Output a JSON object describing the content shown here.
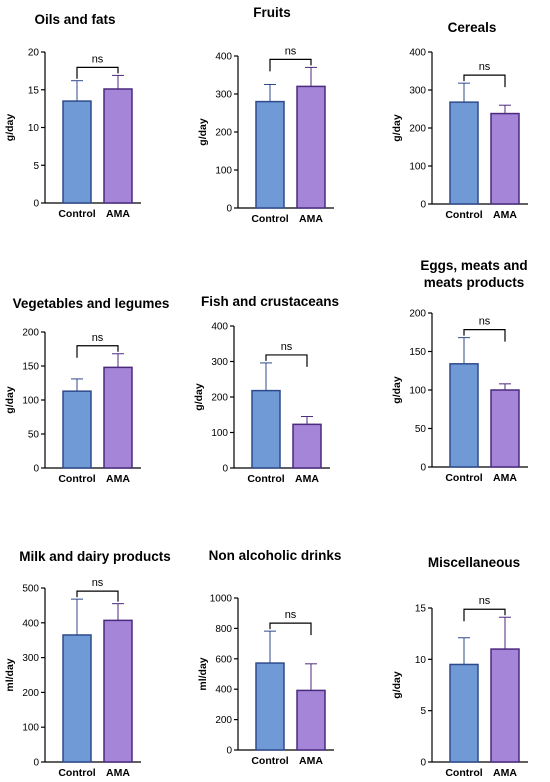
{
  "chart_data": [
    {
      "type": "bar",
      "title": "Oils and fats",
      "ylabel": "g/day",
      "categories": [
        "Control",
        "AMA"
      ],
      "values": [
        13.5,
        15.1
      ],
      "errors": [
        2.7,
        1.8
      ],
      "ylim": [
        0,
        20
      ],
      "yticks": [
        0,
        5,
        10,
        15,
        20
      ],
      "significance": "ns",
      "colors": {
        "fill": [
          "#6f9ad6",
          "#a485d8"
        ],
        "stroke": [
          "#2f4a8c",
          "#4b2a7e"
        ]
      }
    },
    {
      "type": "bar",
      "title": "Fruits",
      "ylabel": "g/day",
      "categories": [
        "Control",
        "AMA"
      ],
      "values": [
        280,
        320
      ],
      "errors": [
        45,
        50
      ],
      "ylim": [
        0,
        400
      ],
      "yticks": [
        0,
        100,
        200,
        300,
        400
      ],
      "significance": "ns",
      "colors": {
        "fill": [
          "#6f9ad6",
          "#a485d8"
        ],
        "stroke": [
          "#2f4a8c",
          "#4b2a7e"
        ]
      }
    },
    {
      "type": "bar",
      "title": "Cereals",
      "ylabel": "g/day",
      "categories": [
        "Control",
        "AMA"
      ],
      "values": [
        268,
        238
      ],
      "errors": [
        50,
        22
      ],
      "ylim": [
        0,
        400
      ],
      "yticks": [
        0,
        100,
        200,
        300,
        400
      ],
      "significance": "ns",
      "colors": {
        "fill": [
          "#6f9ad6",
          "#a485d8"
        ],
        "stroke": [
          "#2f4a8c",
          "#4b2a7e"
        ]
      }
    },
    {
      "type": "bar",
      "title": "Vegetables and legumes",
      "ylabel": "g/day",
      "categories": [
        "Control",
        "AMA"
      ],
      "values": [
        113,
        148
      ],
      "errors": [
        18,
        20
      ],
      "ylim": [
        0,
        200
      ],
      "yticks": [
        0,
        50,
        100,
        150,
        200
      ],
      "significance": "ns",
      "colors": {
        "fill": [
          "#6f9ad6",
          "#a485d8"
        ],
        "stroke": [
          "#2f4a8c",
          "#4b2a7e"
        ]
      }
    },
    {
      "type": "bar",
      "title": "Fish and crustaceans",
      "ylabel": "g/day",
      "categories": [
        "Control",
        "AMA"
      ],
      "values": [
        218,
        123
      ],
      "errors": [
        78,
        22
      ],
      "ylim": [
        0,
        400
      ],
      "yticks": [
        0,
        100,
        200,
        300,
        400
      ],
      "significance": "ns",
      "colors": {
        "fill": [
          "#6f9ad6",
          "#a485d8"
        ],
        "stroke": [
          "#2f4a8c",
          "#4b2a7e"
        ]
      }
    },
    {
      "type": "bar",
      "title": "Eggs, meats and meats products",
      "ylabel": "g/day",
      "categories": [
        "Control",
        "AMA"
      ],
      "values": [
        134,
        100
      ],
      "errors": [
        34,
        8
      ],
      "ylim": [
        0,
        200
      ],
      "yticks": [
        0,
        50,
        100,
        150,
        200
      ],
      "significance": "ns",
      "colors": {
        "fill": [
          "#6f9ad6",
          "#a485d8"
        ],
        "stroke": [
          "#2f4a8c",
          "#4b2a7e"
        ]
      }
    },
    {
      "type": "bar",
      "title": "Milk and dairy products",
      "ylabel": "ml/day",
      "categories": [
        "Control",
        "AMA"
      ],
      "values": [
        365,
        407
      ],
      "errors": [
        103,
        48
      ],
      "ylim": [
        0,
        500
      ],
      "yticks": [
        0,
        100,
        200,
        300,
        400,
        500
      ],
      "significance": "ns",
      "colors": {
        "fill": [
          "#6f9ad6",
          "#a485d8"
        ],
        "stroke": [
          "#2f4a8c",
          "#4b2a7e"
        ]
      }
    },
    {
      "type": "bar",
      "title": "Non alcoholic drinks",
      "ylabel": "ml/day",
      "categories": [
        "Control",
        "AMA"
      ],
      "values": [
        572,
        392
      ],
      "errors": [
        210,
        175
      ],
      "ylim": [
        0,
        1000
      ],
      "yticks": [
        0,
        200,
        400,
        600,
        800,
        1000
      ],
      "significance": "ns",
      "colors": {
        "fill": [
          "#6f9ad6",
          "#a485d8"
        ],
        "stroke": [
          "#2f4a8c",
          "#4b2a7e"
        ]
      }
    },
    {
      "type": "bar",
      "title": "Miscellaneous",
      "ylabel": "g/day",
      "categories": [
        "Control",
        "AMA"
      ],
      "values": [
        9.5,
        11.0
      ],
      "errors": [
        2.6,
        3.1
      ],
      "ylim": [
        0,
        15
      ],
      "yticks": [
        0,
        5,
        10,
        15
      ],
      "significance": "ns",
      "colors": {
        "fill": [
          "#6f9ad6",
          "#a485d8"
        ],
        "stroke": [
          "#2f4a8c",
          "#4b2a7e"
        ]
      }
    }
  ]
}
